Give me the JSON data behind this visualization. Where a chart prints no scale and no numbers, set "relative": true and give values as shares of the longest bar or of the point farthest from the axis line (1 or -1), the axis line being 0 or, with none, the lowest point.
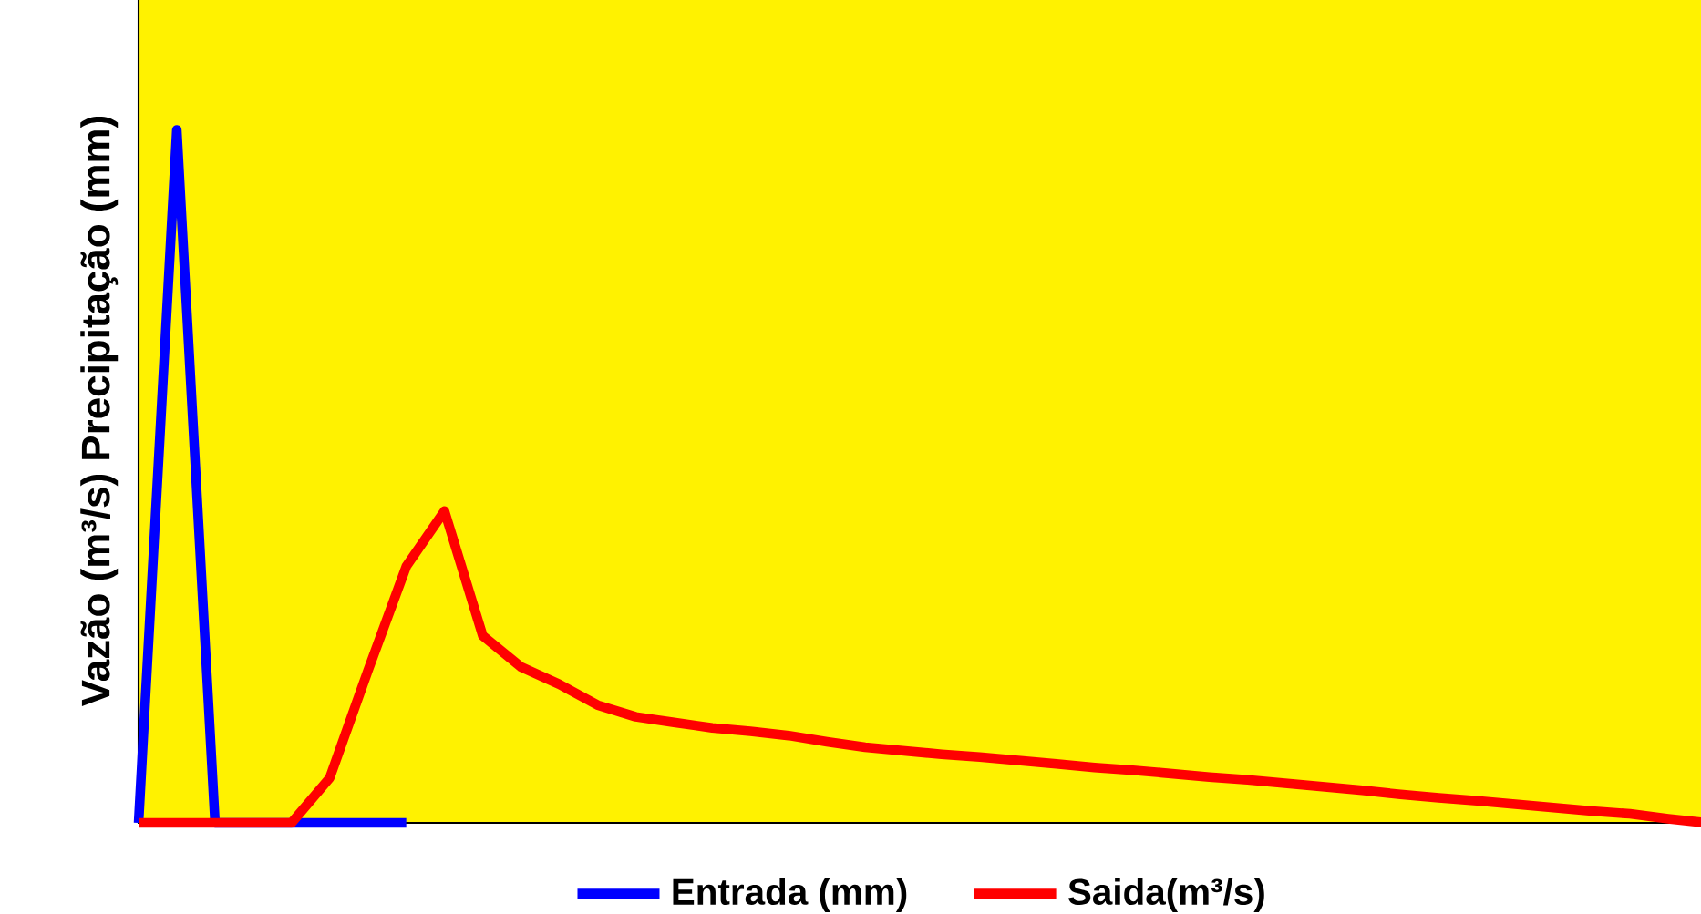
{
  "chart_data": {
    "type": "line",
    "relative": true,
    "ylabel": "Vazão (m³/s)     Precipitação (mm)",
    "categories": [
      null,
      null,
      null,
      null,
      null,
      null,
      null,
      null,
      null,
      null,
      null,
      null,
      null,
      null,
      null,
      null,
      null,
      null,
      null,
      null,
      null,
      null,
      null,
      null,
      null,
      null,
      null,
      null,
      null,
      null,
      null,
      null,
      null,
      null,
      null,
      null,
      null,
      null,
      null,
      null,
      null,
      null
    ],
    "series": [
      {
        "name": "Entrada  (mm)",
        "color": "#0000ff",
        "values": [
          0,
          1,
          0,
          0,
          0,
          0,
          0,
          0,
          null,
          null,
          null,
          null,
          null,
          null,
          null,
          null,
          null,
          null,
          null,
          null,
          null,
          null,
          null,
          null,
          null,
          null,
          null,
          null,
          null,
          null,
          null,
          null,
          null,
          null,
          null,
          null,
          null,
          null,
          null,
          null,
          null,
          null
        ]
      },
      {
        "name": "Saida(m³/s)",
        "color": "#ff0000",
        "values": [
          0,
          0,
          0,
          0,
          0,
          0.065,
          0.22,
          0.37,
          0.45,
          0.27,
          0.225,
          0.2,
          0.17,
          0.153,
          0.145,
          0.137,
          0.132,
          0.126,
          0.117,
          0.109,
          0.104,
          0.099,
          0.095,
          0.09,
          0.085,
          0.08,
          0.076,
          0.071,
          0.066,
          0.062,
          0.057,
          0.052,
          0.047,
          0.041,
          0.036,
          0.032,
          0.027,
          0.022,
          0.017,
          0.013,
          0.006,
          0
        ]
      }
    ],
    "legend": "bottom",
    "line_style": "solid",
    "marker": "none"
  }
}
